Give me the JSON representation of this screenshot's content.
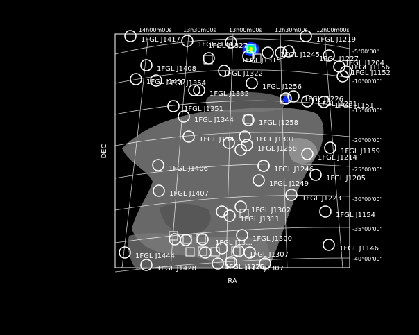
{
  "axes": {
    "xlabel": "RA",
    "ylabel": "DEC",
    "ra_ticks": [
      "14h00m00s",
      "13h30m00s",
      "13h00m00s",
      "12h30m00s",
      "12h00m00s"
    ],
    "dec_ticks": [
      "-5°00'00\"",
      "-10°00'00\"",
      "-15°00'00\"",
      "-20°00'00\"",
      "-25°00'00\"",
      "-30°00'00\"",
      "-35°00'00\"",
      "-40°00'00\""
    ]
  },
  "colors": {
    "background": "#000000",
    "frame": "#ffffff",
    "grid": "#ffffff",
    "emission": "#808080",
    "bright_source": [
      "#1030ff",
      "#00e0ff",
      "#00ff40",
      "#ffff00"
    ]
  },
  "sources": [
    {
      "label": "1FGL J1417"
    },
    {
      "label": "1FGL J1219"
    },
    {
      "label": "1FGL J134..."
    },
    {
      "label": "1FGL J1327"
    },
    {
      "label": "1FGL J1315"
    },
    {
      "label": "1FGL J1245"
    },
    {
      "label": "1FGL J1227"
    },
    {
      "label": "1FGL J1204"
    },
    {
      "label": "1FGL J1156"
    },
    {
      "label": "1FGL J1152"
    },
    {
      "label": "1FGL J1408"
    },
    {
      "label": "1FGL J1322"
    },
    {
      "label": "1FGL J1407"
    },
    {
      "label": "1FGL J1354"
    },
    {
      "label": "1FGL J1256"
    },
    {
      "label": "1FGL J1332"
    },
    {
      "label": "1FGL J1226"
    },
    {
      "label": "1FGL J1231"
    },
    {
      "label": "1FGL J1151"
    },
    {
      "label": "1FGL J1351"
    },
    {
      "label": "1FGL J1258"
    },
    {
      "label": "1FGL J1344"
    },
    {
      "label": "1FGL J134..."
    },
    {
      "label": "1FGL J1301"
    },
    {
      "label": "1FGL J1258"
    },
    {
      "label": "1FGL J1159"
    },
    {
      "label": "1FGL J1214"
    },
    {
      "label": "1FGL J1406"
    },
    {
      "label": "1FGL J1246"
    },
    {
      "label": "1FGL J1205"
    },
    {
      "label": "1FGL J1249"
    },
    {
      "label": "1FGL J1407"
    },
    {
      "label": "1FGL J1223"
    },
    {
      "label": "1FGL J1302"
    },
    {
      "label": "1FGL J1154"
    },
    {
      "label": "1FGL J1311"
    },
    {
      "label": "1FGL J1300"
    },
    {
      "label": "1FGL J13..."
    },
    {
      "label": "1FGL J1146"
    },
    {
      "label": "1FGL J1444"
    },
    {
      "label": "1FGL J1307"
    },
    {
      "label": "1FGL J1428"
    },
    {
      "label": "1FGL J1325"
    },
    {
      "label": "1FGL J1307"
    }
  ]
}
